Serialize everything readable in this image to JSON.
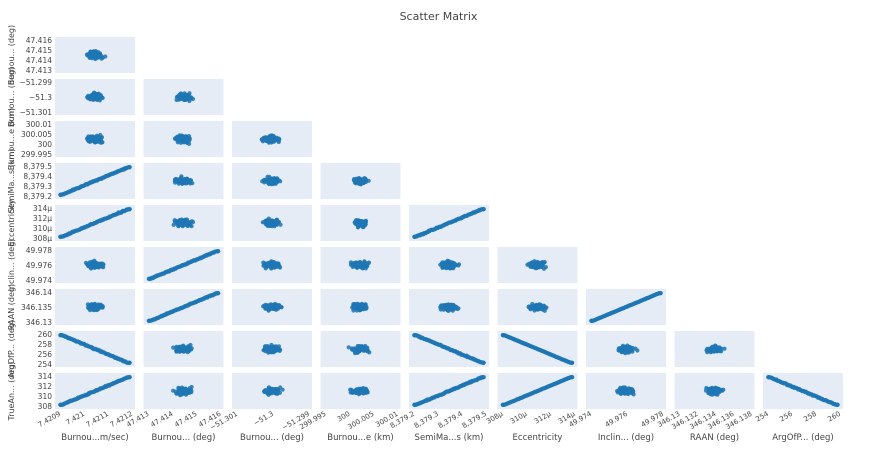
{
  "chart_data": {
    "type": "scatter",
    "title": "Scatter Matrix",
    "point_color": "#1f77b4",
    "panel_background": "#e5ecf6",
    "points_per_panel": 100,
    "layout": "lower-triangular",
    "variables": [
      {
        "name": "Burnou...m/sec)",
        "row_label": "",
        "range": [
          7.4209,
          7.4212
        ],
        "ticks": [
          "7.4209",
          "7.421",
          "7.4211",
          "7.4212"
        ],
        "y_ticks": []
      },
      {
        "name": "Burnou... (deg)",
        "row_label": "Burnou... (deg)",
        "range": [
          47.413,
          47.416
        ],
        "ticks": [
          "47.413",
          "47.414",
          "47.415",
          "47.416"
        ],
        "y_ticks": [
          "47.416",
          "47.415",
          "47.414",
          "47.413"
        ]
      },
      {
        "name": "Burnou... (deg)",
        "row_label": "Burnou... (deg)",
        "range": [
          -51.301,
          -51.299
        ],
        "ticks": [
          "−51.301",
          "−51.3",
          "−51.299"
        ],
        "y_ticks": [
          "−51.299",
          "−51.3",
          "−51.301"
        ]
      },
      {
        "name": "Burnou...e (km)",
        "row_label": "Burnou...e (km)",
        "range": [
          299.995,
          300.01
        ],
        "ticks": [
          "299.995",
          "300",
          "300.005",
          "300.01"
        ],
        "y_ticks": [
          "300.01",
          "300.005",
          "300",
          "299.995"
        ]
      },
      {
        "name": "SemiMa...s (km)",
        "row_label": "SemiMa...s (km)",
        "range": [
          8379.2,
          8379.5
        ],
        "ticks": [
          "8,379.2",
          "8,379.3",
          "8,379.4",
          "8,379.5"
        ],
        "y_ticks": [
          "8,379.5",
          "8,379.4",
          "8,379.3",
          "8,379.2"
        ]
      },
      {
        "name": "Eccentricity",
        "row_label": "Eccentricity",
        "range": [
          308,
          314
        ],
        "ticks": [
          "308µ",
          "310µ",
          "312µ",
          "314µ"
        ],
        "y_ticks": [
          "314µ",
          "312µ",
          "310µ",
          "308µ"
        ]
      },
      {
        "name": "Inclin... (deg)",
        "row_label": "Inclin... (deg)",
        "range": [
          49.974,
          49.978
        ],
        "ticks": [
          "49.974",
          "49.976",
          "49.978"
        ],
        "y_ticks": [
          "49.978",
          "49.976",
          "49.974"
        ]
      },
      {
        "name": "RAAN (deg)",
        "row_label": "RAAN (deg)",
        "range": [
          346.13,
          346.14
        ],
        "ticks": [
          "346.13",
          "346.132",
          "346.134",
          "346.136",
          "346.138"
        ],
        "y_ticks": [
          "346.14",
          "346.135",
          "346.13"
        ]
      },
      {
        "name": "ArgOfP... (deg)",
        "row_label": "ArgOfP... (deg)",
        "range": [
          254,
          260
        ],
        "ticks": [
          "254",
          "256",
          "258",
          "260"
        ],
        "y_ticks": [
          "260",
          "258",
          "256",
          "254"
        ]
      },
      {
        "name": "",
        "row_label": "TrueAn... (deg)",
        "range": [
          308,
          314
        ],
        "ticks": [],
        "y_ticks": [
          "314",
          "312",
          "310",
          "308"
        ]
      }
    ],
    "correlated_pairs": [
      {
        "row": 4,
        "col": 0,
        "direction": "positive"
      },
      {
        "row": 5,
        "col": 0,
        "direction": "positive"
      },
      {
        "row": 5,
        "col": 4,
        "direction": "positive"
      },
      {
        "row": 6,
        "col": 1,
        "direction": "positive"
      },
      {
        "row": 7,
        "col": 1,
        "direction": "positive"
      },
      {
        "row": 7,
        "col": 6,
        "direction": "positive"
      },
      {
        "row": 8,
        "col": 0,
        "direction": "negative"
      },
      {
        "row": 8,
        "col": 4,
        "direction": "negative"
      },
      {
        "row": 8,
        "col": 5,
        "direction": "negative"
      },
      {
        "row": 9,
        "col": 0,
        "direction": "positive"
      },
      {
        "row": 9,
        "col": 4,
        "direction": "positive"
      },
      {
        "row": 9,
        "col": 5,
        "direction": "positive"
      },
      {
        "row": 9,
        "col": 8,
        "direction": "negative"
      }
    ]
  }
}
